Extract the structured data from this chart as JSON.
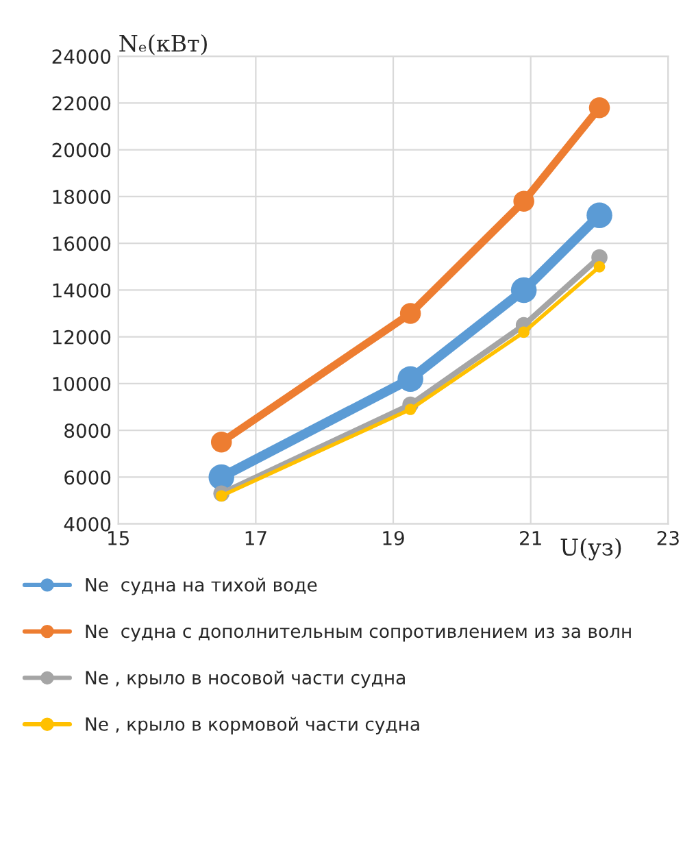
{
  "chart_data": {
    "type": "line",
    "xlabel": "U(уз)",
    "ylabel": "Nₑ(кВт)",
    "x": [
      16.5,
      19.25,
      20.9,
      22
    ],
    "series": [
      {
        "name": "Ne  судна на тихой воде",
        "color": "#5b9bd5",
        "values": [
          6000,
          10200,
          14000,
          17200
        ]
      },
      {
        "name": "Ne  судна с дополнительным сопротивлением из за волн",
        "color": "#ed7d31",
        "values": [
          7500,
          13000,
          17800,
          21800
        ]
      },
      {
        "name": "Ne , крыло в носовой части судна",
        "color": "#a5a5a5",
        "values": [
          5300,
          9100,
          12500,
          15400
        ]
      },
      {
        "name": "Ne , крыло в кормовой части судна",
        "color": "#ffc000",
        "values": [
          5200,
          8900,
          12200,
          15000
        ]
      }
    ],
    "xlim": [
      15,
      23
    ],
    "xticks": [
      15,
      17,
      19,
      21,
      23
    ],
    "ylim": [
      4000,
      24000
    ],
    "yticks": [
      4000,
      6000,
      8000,
      10000,
      12000,
      14000,
      16000,
      18000,
      20000,
      22000,
      24000
    ],
    "grid": true,
    "legend": "bottom",
    "marker": "circle",
    "line_style": "solid"
  }
}
